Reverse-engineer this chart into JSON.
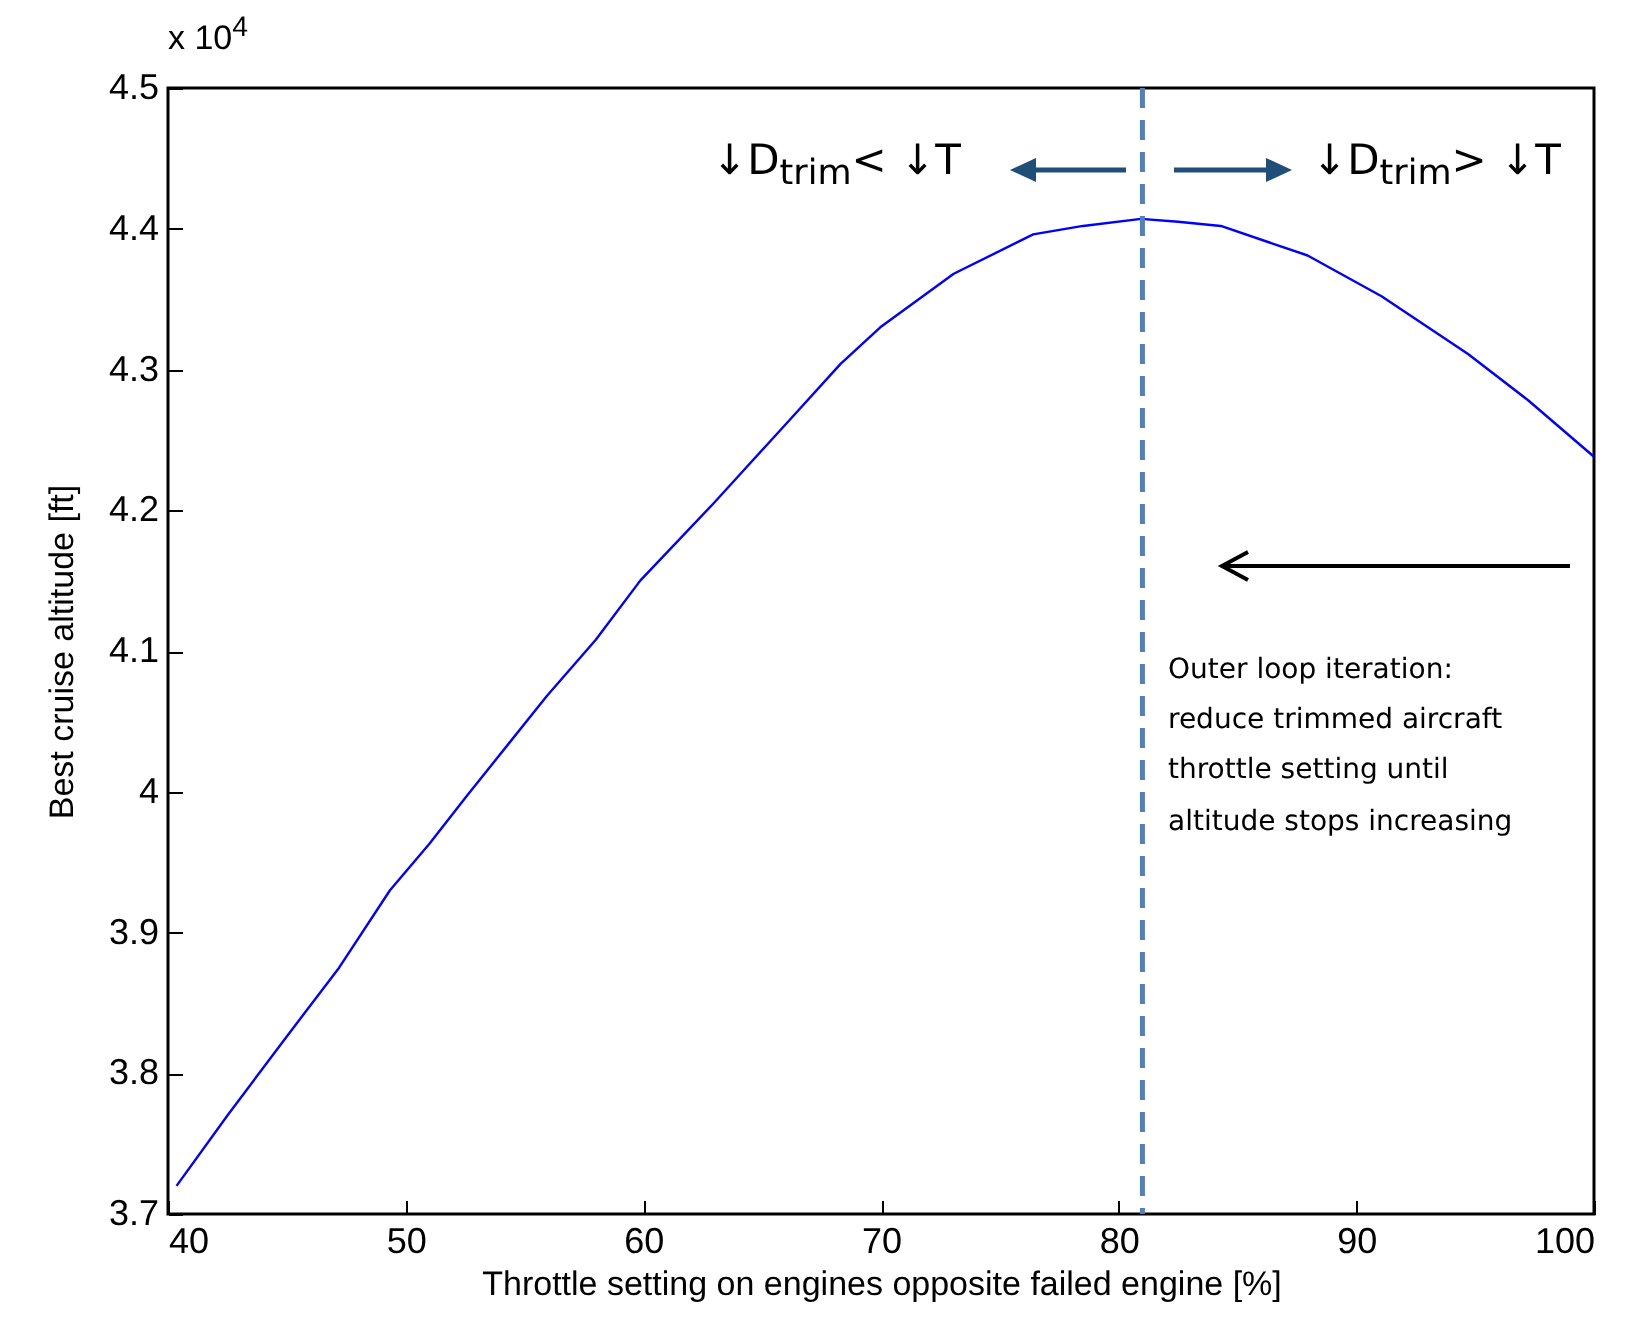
{
  "chart_data": {
    "type": "line",
    "xlabel": "Throttle setting on engines opposite failed engine [%]",
    "ylabel": "Best cruise altitude [ft]",
    "x": [
      40.36,
      42.5,
      44.99,
      47.2,
      49.34,
      51.0,
      52.57,
      55.94,
      58.0,
      59.87,
      62.96,
      66.04,
      68.3,
      69.97,
      73.06,
      76.4,
      78.5,
      80.94,
      82.5,
      84.3,
      87.95,
      91.06,
      94.7,
      97.24,
      100
    ],
    "series": [
      {
        "color": "#0000ff",
        "values": [
          3.72,
          3.77,
          3.826,
          3.875,
          3.93,
          3.963,
          3.997,
          4.068,
          4.108,
          4.15,
          4.205,
          4.262,
          4.304,
          4.33,
          4.368,
          4.396,
          4.402,
          4.407,
          4.405,
          4.402,
          4.381,
          4.352,
          4.311,
          4.278,
          4.238
        ]
      }
    ],
    "xlim": [
      40,
      100
    ],
    "ylim": [
      3.7,
      4.5
    ],
    "xticks": [
      40,
      50,
      60,
      70,
      80,
      90,
      100
    ],
    "yticks": [
      3.7,
      3.8,
      3.9,
      4,
      4.1,
      4.2,
      4.3,
      4.4,
      4.5
    ],
    "grid": false,
    "marker": "none",
    "line_style": "solid",
    "ref_lines": [
      {
        "axis": "x",
        "value": 81,
        "color": "#4f81bd",
        "line_style": "dashed"
      }
    ],
    "annotations": [
      "x 10$^{4}$",
      "↓D$_{trim}$< ↓T",
      "↓D$_{trim}$> ↓T",
      "Outer loop iteration:\nreduce trimmed aircraft\nthrottle setting until\naltitude stops increasing"
    ]
  }
}
